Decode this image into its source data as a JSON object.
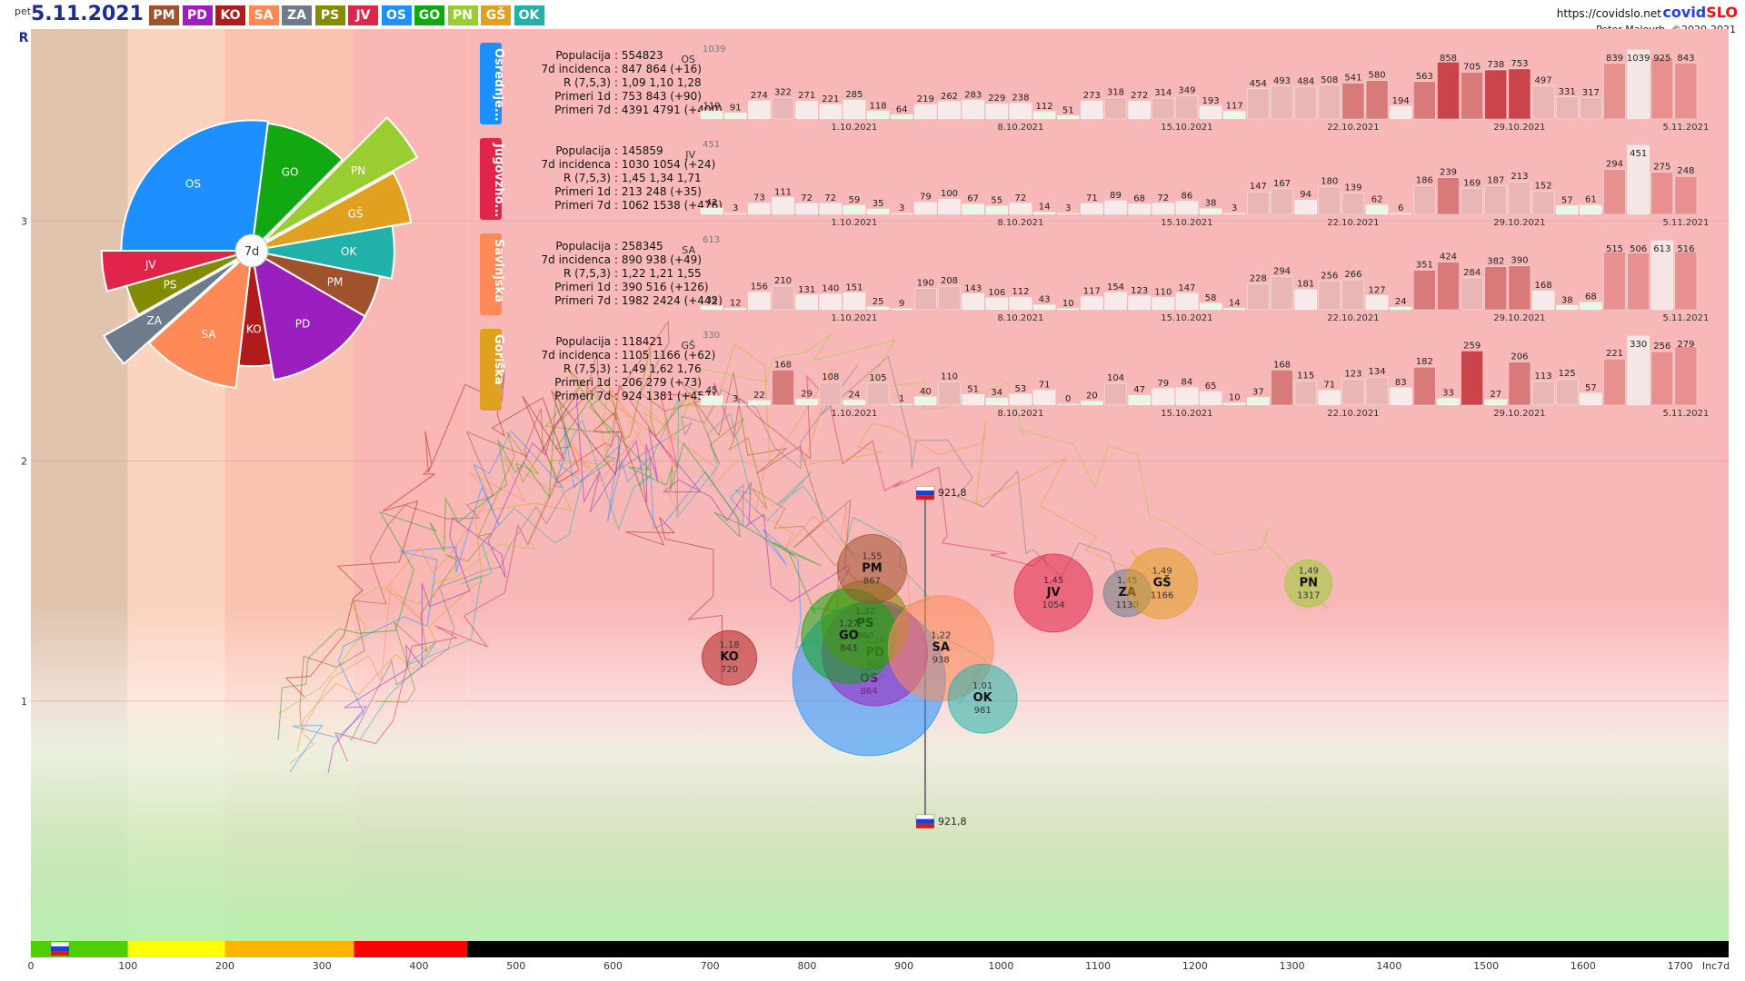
{
  "header": {
    "day": "pet",
    "date": "5.11.2021",
    "site": "https://covidslo.net",
    "logo_main": "covid",
    "logo_accent": "SLO",
    "credit": "Peter Malovrh, ©2020-2021",
    "region_buttons": [
      {
        "code": "PM",
        "color": "#a0522d"
      },
      {
        "code": "PD",
        "color": "#9b1fbf"
      },
      {
        "code": "KO",
        "color": "#b01c1c"
      },
      {
        "code": "SA",
        "color": "#ff8a57"
      },
      {
        "code": "ZA",
        "color": "#6e7b8b"
      },
      {
        "code": "PS",
        "color": "#838b00"
      },
      {
        "code": "JV",
        "color": "#e0244a"
      },
      {
        "code": "OS",
        "color": "#1e8fff"
      },
      {
        "code": "GO",
        "color": "#11a811"
      },
      {
        "code": "PN",
        "color": "#9acd32"
      },
      {
        "code": "GŠ",
        "color": "#e0a020"
      },
      {
        "code": "OK",
        "color": "#20b2aa"
      }
    ]
  },
  "chart_data": {
    "type": "scatter",
    "xlabel": "Inc7d",
    "ylabel": "R",
    "xlim": [
      0,
      1750
    ],
    "ylim": [
      0,
      3.8
    ],
    "x_ticks": [
      0,
      100,
      200,
      300,
      400,
      500,
      600,
      700,
      800,
      900,
      1000,
      1100,
      1200,
      1300,
      1400,
      1500,
      1600,
      1700
    ],
    "y_ticks": [
      1,
      2,
      3
    ],
    "band_colors": [
      "#4cd000",
      "#ffff00",
      "#ffb400",
      "#ff0000",
      "#000000"
    ],
    "band_edges": [
      0,
      100,
      200,
      333,
      450,
      1750
    ],
    "zone_edges": [
      0,
      100,
      200,
      333,
      450
    ],
    "zone_colors": [
      "#e0c4ae",
      "#fbd3be",
      "#fac2b0",
      "#fab7b4",
      "#f9b8b8"
    ],
    "national": {
      "x": 921.8,
      "label": "921,8",
      "y_top": 1.85,
      "y_bottom": 0.5
    },
    "bubbles": [
      {
        "code": "PM",
        "r": 1.55,
        "inc": 867,
        "r_label": "1,55",
        "color": "#a0522d"
      },
      {
        "code": "JV",
        "r": 1.45,
        "inc": 1054,
        "r_label": "1,45",
        "color": "#e0244a"
      },
      {
        "code": "ZA",
        "r": 1.45,
        "inc": 1130,
        "r_label": "1,45",
        "color": "#6e7b8b"
      },
      {
        "code": "GŠ",
        "r": 1.49,
        "inc": 1166,
        "r_label": "1,49",
        "color": "#e0a020"
      },
      {
        "code": "PN",
        "r": 1.49,
        "inc": 1317,
        "r_label": "1,49",
        "color": "#9acd32"
      },
      {
        "code": "SA",
        "r": 1.22,
        "inc": 938,
        "r_label": "1,22",
        "color": "#ff8a57"
      },
      {
        "code": "KO",
        "r": 1.18,
        "inc": 720,
        "r_label": "1,18",
        "color": "#b01c1c"
      },
      {
        "code": "OS",
        "r": 1.09,
        "inc": 864,
        "r_label": "1,09",
        "color": "#1e8fff"
      },
      {
        "code": "PD",
        "r": 1.2,
        "inc": 870,
        "r_label": "1,20",
        "color": "#9b1fbf"
      },
      {
        "code": "PS",
        "r": 1.32,
        "inc": 860,
        "r_label": "1,32",
        "color": "#838b00"
      },
      {
        "code": "GO",
        "r": 1.27,
        "inc": 843,
        "r_label": "1,27",
        "color": "#11a811"
      },
      {
        "code": "OK",
        "r": 1.01,
        "inc": 981,
        "r_label": "1,01",
        "color": "#20b2aa"
      }
    ],
    "pie": {
      "center_label": "7d",
      "slices": [
        {
          "code": "OS",
          "inc": 864,
          "color": "#1e8fff"
        },
        {
          "code": "GO",
          "inc": 843,
          "color": "#11a811"
        },
        {
          "code": "PN",
          "inc": 1317,
          "color": "#9acd32"
        },
        {
          "code": "GŠ",
          "inc": 1166,
          "color": "#e0a020"
        },
        {
          "code": "OK",
          "inc": 981,
          "color": "#20b2aa"
        },
        {
          "code": "PM",
          "inc": 867,
          "color": "#a0522d"
        },
        {
          "code": "PD",
          "inc": 870,
          "color": "#9b1fbf"
        },
        {
          "code": "KO",
          "inc": 720,
          "color": "#b01c1c"
        },
        {
          "code": "SA",
          "inc": 938,
          "color": "#ff8a57"
        },
        {
          "code": "ZA",
          "inc": 1130,
          "color": "#6e7b8b"
        },
        {
          "code": "PS",
          "inc": 860,
          "color": "#838b00"
        },
        {
          "code": "JV",
          "inc": 1054,
          "color": "#e0244a"
        }
      ]
    },
    "small_multiples": [
      {
        "region": "Osrednje...",
        "code": "OS",
        "color": "#1e8fff",
        "stats": [
          [
            "Populacija",
            ": 554823"
          ],
          [
            "7d incidenca",
            ": 847 864 (+16)"
          ],
          [
            "R (7,5,3)",
            ": 1,09 1,10 1,28"
          ],
          [
            "Primeri 1d",
            ": 753 843 (+90)"
          ],
          [
            "Primeri 7d",
            ": 4391 4791 (+400)"
          ]
        ],
        "max_label": "1039",
        "values": [
          119,
          91,
          274,
          322,
          271,
          221,
          285,
          118,
          64,
          219,
          262,
          283,
          229,
          238,
          112,
          51,
          273,
          318,
          272,
          314,
          349,
          193,
          117,
          454,
          493,
          484,
          508,
          541,
          580,
          194,
          563,
          858,
          705,
          738,
          753,
          497,
          331,
          317,
          839,
          1039,
          925,
          843
        ]
      },
      {
        "region": "Jugovzho...",
        "code": "JV",
        "color": "#e0244a",
        "stats": [
          [
            "Populacija",
            ": 145859"
          ],
          [
            "7d incidenca",
            ": 1030 1054 (+24)"
          ],
          [
            "R (7,5,3)",
            ": 1,45 1,34 1,71"
          ],
          [
            "Primeri 1d",
            ": 213 248 (+35)"
          ],
          [
            "Primeri 7d",
            ": 1062 1538 (+476)"
          ]
        ],
        "max_label": "451",
        "values": [
          42,
          3,
          73,
          111,
          72,
          72,
          59,
          35,
          3,
          79,
          100,
          67,
          55,
          72,
          14,
          3,
          71,
          89,
          68,
          72,
          86,
          38,
          3,
          147,
          167,
          94,
          180,
          139,
          62,
          6,
          186,
          239,
          169,
          187,
          213,
          152,
          57,
          61,
          294,
          451,
          275,
          248
        ]
      },
      {
        "region": "Savinjska",
        "code": "SA",
        "color": "#ff8a57",
        "stats": [
          [
            "Populacija",
            ": 258345"
          ],
          [
            "7d incidenca",
            ": 890 938 (+49)"
          ],
          [
            "R (7,5,3)",
            ": 1,22 1,21 1,55"
          ],
          [
            "Primeri 1d",
            ": 390 516 (+126)"
          ],
          [
            "Primeri 7d",
            ": 1982 2424 (+442)"
          ]
        ],
        "max_label": "613",
        "values": [
          35,
          12,
          156,
          210,
          131,
          140,
          151,
          25,
          9,
          190,
          208,
          143,
          106,
          112,
          43,
          10,
          117,
          154,
          123,
          110,
          147,
          58,
          14,
          228,
          294,
          181,
          256,
          266,
          127,
          24,
          351,
          424,
          284,
          382,
          390,
          168,
          38,
          68,
          515,
          506,
          613,
          516
        ]
      },
      {
        "region": "Goriška",
        "code": "GŠ",
        "color": "#e0a020",
        "stats": [
          [
            "Populacija",
            ": 118421"
          ],
          [
            "7d incidenca",
            ": 1105 1166 (+62)"
          ],
          [
            "R (7,5,3)",
            ": 1,49 1,62 1,76"
          ],
          [
            "Primeri 1d",
            ": 206 279 (+73)"
          ],
          [
            "Primeri 7d",
            ": 924 1381 (+457)"
          ]
        ],
        "max_label": "330",
        "values": [
          45,
          3,
          22,
          168,
          29,
          108,
          24,
          105,
          1,
          40,
          110,
          51,
          34,
          53,
          71,
          0,
          20,
          104,
          47,
          79,
          84,
          65,
          10,
          37,
          168,
          115,
          71,
          123,
          134,
          83,
          182,
          33,
          259,
          27,
          206,
          113,
          125,
          57,
          221,
          330,
          256,
          279
        ]
      }
    ],
    "date_labels": [
      {
        "index": 6,
        "label": "1.10.2021"
      },
      {
        "index": 13,
        "label": "8.10.2021"
      },
      {
        "index": 20,
        "label": "15.10.2021"
      },
      {
        "index": 27,
        "label": "22.10.2021"
      },
      {
        "index": 34,
        "label": "29.10.2021"
      },
      {
        "index": 41,
        "label": "5.11.2021"
      }
    ]
  }
}
